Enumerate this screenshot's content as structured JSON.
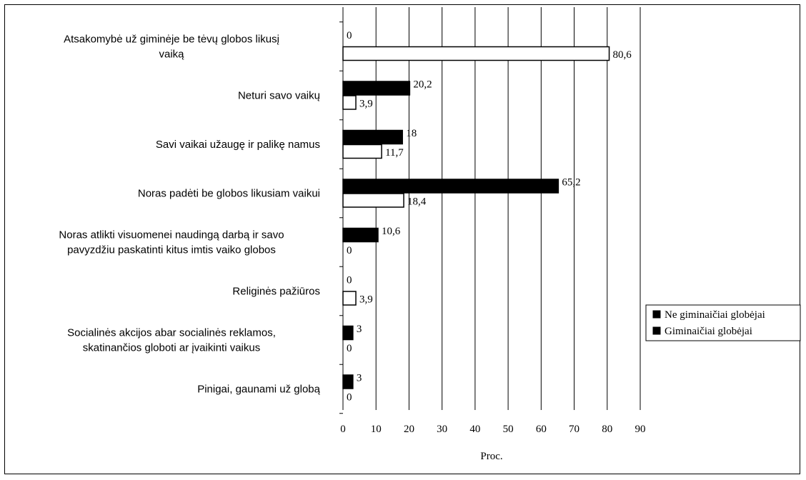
{
  "chart_data": {
    "type": "bar",
    "orientation": "horizontal",
    "categories": [
      [
        "Atsakomybė už giminėje be tėvų globos likusį",
        "vaiką"
      ],
      [
        "Neturi savo vaikų"
      ],
      [
        "Savi vaikai užaugę ir palikę namus"
      ],
      [
        "Noras padėti be globos likusiam vaikui"
      ],
      [
        "Noras atlikti visuomenei naudingą darbą ir savo",
        "pavyzdžiu paskatinti kitus imtis vaiko globos"
      ],
      [
        "Religinės pažiūros"
      ],
      [
        "Socialinės akcijos abar socialinės reklamos,",
        "skatinančios globoti ar įvaikinti vaikus"
      ],
      [
        "Pinigai, gaunami už globą"
      ]
    ],
    "series": [
      {
        "name": "Ne giminaičiai globėjai",
        "color": "#000000",
        "values": [
          0,
          20.2,
          18,
          65.2,
          10.6,
          0,
          3,
          3
        ],
        "labels": [
          "0",
          "20,2",
          "18",
          "65,2",
          "10,6",
          "0",
          "3",
          "3"
        ]
      },
      {
        "name": "Giminaičiai globėjai",
        "color": "#ffffff",
        "values": [
          80.6,
          3.9,
          11.7,
          18.4,
          0,
          3.9,
          0,
          0
        ],
        "labels": [
          "80,6",
          "3,9",
          "11,7",
          "18,4",
          "0",
          "3,9",
          "0",
          "0"
        ]
      }
    ],
    "xlabel": "Proc.",
    "xlim": [
      0,
      90
    ],
    "xticks": [
      0,
      10,
      20,
      30,
      40,
      50,
      60,
      70,
      80,
      90
    ],
    "grid": "vertical",
    "legend": "right"
  }
}
